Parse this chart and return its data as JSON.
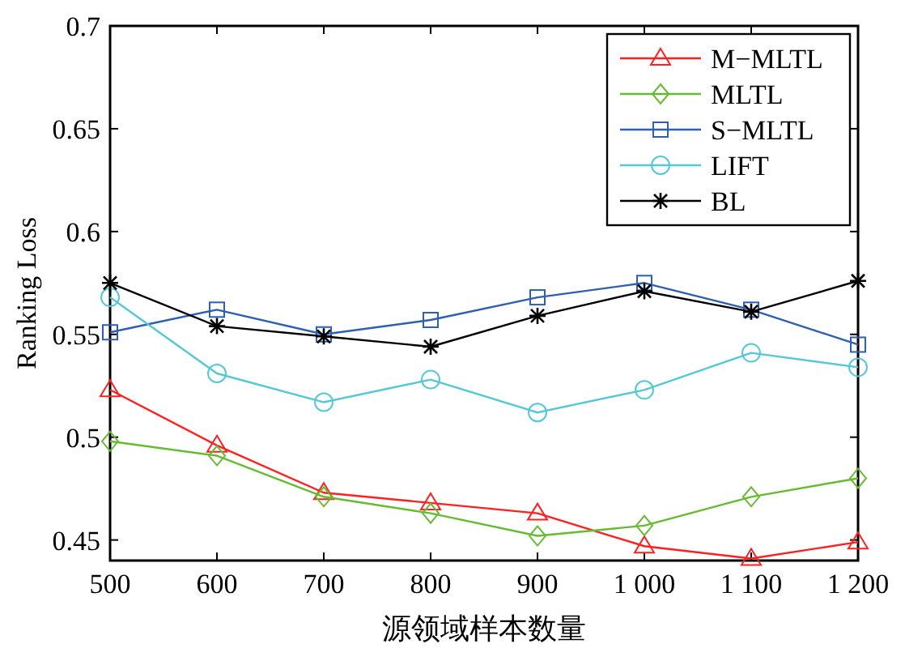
{
  "chart_data": {
    "type": "line",
    "xlabel": "源领域样本数量",
    "ylabel": "Ranking Loss",
    "x": [
      500,
      600,
      700,
      800,
      900,
      1000,
      1100,
      1200
    ],
    "xlim": [
      500,
      1200
    ],
    "xticks": [
      500,
      600,
      700,
      800,
      900,
      {
        "value": 1000,
        "label": "1 000"
      },
      {
        "value": 1100,
        "label": "1 100"
      },
      {
        "value": 1200,
        "label": "1 200"
      }
    ],
    "ylim": [
      0.44,
      0.7
    ],
    "yticks": [
      0.45,
      0.5,
      0.55,
      0.6,
      0.65,
      0.7
    ],
    "legend": "top right",
    "grid": false,
    "line_style": "solid",
    "series": [
      {
        "name": "M−MLTL",
        "color": "#ff2020",
        "marker": "triangle",
        "values": [
          0.523,
          0.496,
          0.473,
          0.468,
          0.463,
          0.447,
          0.441,
          0.449
        ]
      },
      {
        "name": "MLTL",
        "color": "#66bb33",
        "marker": "diamond",
        "values": [
          0.498,
          0.491,
          0.471,
          0.463,
          0.452,
          0.457,
          0.471,
          0.48
        ]
      },
      {
        "name": "S−MLTL",
        "color": "#2f5faf",
        "marker": "square",
        "values": [
          0.551,
          0.562,
          0.55,
          0.557,
          0.568,
          0.575,
          0.562,
          0.545
        ]
      },
      {
        "name": "LIFT",
        "color": "#55c8d8",
        "marker": "circle",
        "values": [
          0.568,
          0.531,
          0.517,
          0.528,
          0.512,
          0.523,
          0.541,
          0.534
        ]
      },
      {
        "name": "BL",
        "color": "#000000",
        "marker": "cross",
        "values": [
          0.575,
          0.554,
          0.549,
          0.544,
          0.559,
          0.571,
          0.561,
          0.576
        ]
      }
    ]
  }
}
